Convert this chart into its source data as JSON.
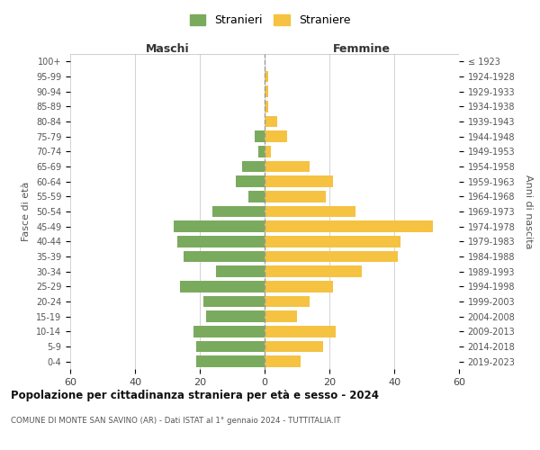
{
  "age_groups": [
    "100+",
    "95-99",
    "90-94",
    "85-89",
    "80-84",
    "75-79",
    "70-74",
    "65-69",
    "60-64",
    "55-59",
    "50-54",
    "45-49",
    "40-44",
    "35-39",
    "30-34",
    "25-29",
    "20-24",
    "15-19",
    "10-14",
    "5-9",
    "0-4"
  ],
  "birth_years": [
    "≤ 1923",
    "1924-1928",
    "1929-1933",
    "1934-1938",
    "1939-1943",
    "1944-1948",
    "1949-1953",
    "1954-1958",
    "1959-1963",
    "1964-1968",
    "1969-1973",
    "1974-1978",
    "1979-1983",
    "1984-1988",
    "1989-1993",
    "1994-1998",
    "1999-2003",
    "2004-2008",
    "2009-2013",
    "2014-2018",
    "2019-2023"
  ],
  "maschi": [
    0,
    0,
    0,
    0,
    0,
    3,
    2,
    7,
    9,
    5,
    16,
    28,
    27,
    25,
    15,
    26,
    19,
    18,
    22,
    21,
    21
  ],
  "femmine": [
    0,
    1,
    1,
    1,
    4,
    7,
    2,
    14,
    21,
    19,
    28,
    52,
    42,
    41,
    30,
    21,
    14,
    10,
    22,
    18,
    11
  ],
  "male_color": "#7aaa5e",
  "female_color": "#f5c242",
  "background_color": "#ffffff",
  "grid_color": "#cccccc",
  "title": "Popolazione per cittadinanza straniera per età e sesso - 2024",
  "subtitle": "COMUNE DI MONTE SAN SAVINO (AR) - Dati ISTAT al 1° gennaio 2024 - TUTTITALIA.IT",
  "xlabel_maschi": "Maschi",
  "xlabel_femmine": "Femmine",
  "ylabel_left": "Fasce di età",
  "ylabel_right": "Anni di nascita",
  "legend_male": "Stranieri",
  "legend_female": "Straniere",
  "xlim": 60
}
